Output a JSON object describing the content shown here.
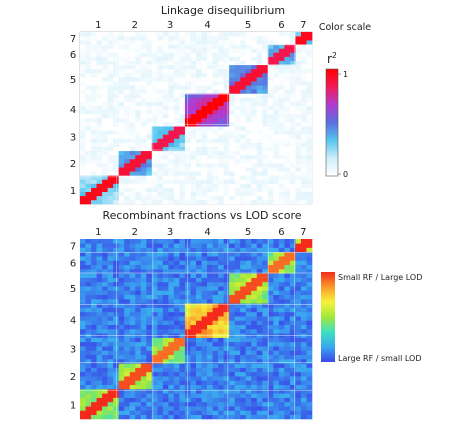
{
  "chart_data": [
    {
      "type": "heatmap",
      "title": "Linkage disequilibrium",
      "chromosomes": [
        "1",
        "2",
        "3",
        "4",
        "5",
        "6",
        "7"
      ],
      "boundaries": [
        0,
        0.158,
        0.314,
        0.463,
        0.637,
        0.811,
        0.925,
        1.0
      ],
      "diagonal_intensity": [
        0.95,
        0.9,
        0.85,
        1.0,
        0.9,
        0.85,
        0.95
      ],
      "block_intensity": [
        0.35,
        0.5,
        0.4,
        0.75,
        0.55,
        0.45,
        0.4
      ],
      "legend": {
        "header": "Color scale",
        "label_main": "r",
        "label_sup": "2",
        "tick_top": "1",
        "tick_bottom": "0",
        "colors": [
          "#ffffff",
          "#cfeefa",
          "#55c7ee",
          "#5a6ee0",
          "#b03cd0",
          "#f21a55",
          "#ff0000"
        ]
      }
    },
    {
      "type": "heatmap",
      "title": "Recombinant fractions vs LOD score",
      "chromosomes": [
        "1",
        "2",
        "3",
        "4",
        "5",
        "6",
        "7"
      ],
      "boundaries": [
        0,
        0.158,
        0.314,
        0.463,
        0.637,
        0.811,
        0.925,
        1.0
      ],
      "diagonal_intensity": [
        1.0,
        0.95,
        0.9,
        1.0,
        0.95,
        0.9,
        1.0
      ],
      "block_intensity": [
        0.55,
        0.6,
        0.55,
        0.85,
        0.6,
        0.55,
        0.55
      ],
      "legend": {
        "label_top": "Small RF / Large LOD",
        "label_bottom": "Large RF / small LOD",
        "colors": [
          "#3a46e8",
          "#3aa9f0",
          "#3de0c0",
          "#9fe83a",
          "#f7f23a",
          "#fb9a2a",
          "#f52a1c"
        ]
      }
    }
  ]
}
